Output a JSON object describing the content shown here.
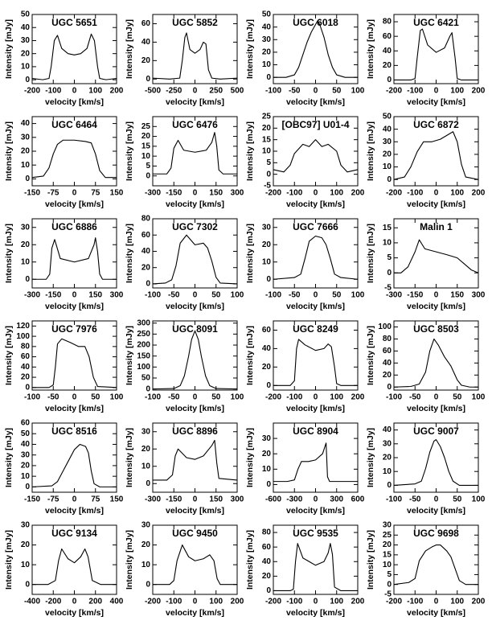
{
  "chart_data": [
    {
      "type": "line",
      "title": "UGC 5651",
      "x_label": "velocity [km/s]",
      "y_label": "Intensity [mJy]",
      "color": "#000000",
      "xlim": [
        -200,
        200
      ],
      "xticks": [
        -200,
        -100,
        0,
        100,
        200
      ],
      "ylim": [
        -3,
        50
      ],
      "yticks": [
        0,
        10,
        20,
        30,
        40,
        50
      ],
      "x": [
        -200,
        -150,
        -120,
        -110,
        -95,
        -80,
        -60,
        -30,
        0,
        30,
        60,
        80,
        95,
        110,
        120,
        150,
        200
      ],
      "values": [
        1,
        0,
        1,
        10,
        30,
        34,
        24,
        20,
        19,
        20,
        24,
        35,
        30,
        10,
        1,
        0,
        1
      ]
    },
    {
      "type": "line",
      "title": "UGC 5852",
      "x_label": "velocity [km/s]",
      "y_label": "Intensity [mJy]",
      "color": "#000000",
      "xlim": [
        -500,
        500
      ],
      "xticks": [
        -500,
        -250,
        0,
        250,
        500
      ],
      "ylim": [
        -5,
        70
      ],
      "yticks": [
        0,
        20,
        40,
        60
      ],
      "x": [
        -500,
        -300,
        -180,
        -150,
        -120,
        -100,
        -60,
        0,
        60,
        100,
        130,
        160,
        200,
        300,
        500
      ],
      "values": [
        1,
        0,
        1,
        20,
        45,
        50,
        32,
        28,
        32,
        40,
        38,
        10,
        1,
        0,
        1
      ]
    },
    {
      "type": "line",
      "title": "UGC 6018",
      "x_label": "velocity [km/s]",
      "y_label": "Intensity [mJy]",
      "color": "#000000",
      "xlim": [
        -100,
        100
      ],
      "xticks": [
        -100,
        -50,
        0,
        50,
        100
      ],
      "ylim": [
        -5,
        50
      ],
      "yticks": [
        0,
        10,
        20,
        30,
        40,
        50
      ],
      "x": [
        -100,
        -70,
        -50,
        -40,
        -30,
        -20,
        -10,
        0,
        5,
        10,
        20,
        30,
        40,
        50,
        70,
        100
      ],
      "values": [
        0,
        0,
        2,
        8,
        18,
        28,
        36,
        42,
        45,
        42,
        32,
        18,
        8,
        2,
        0,
        0
      ]
    },
    {
      "type": "line",
      "title": "UGC 6421",
      "x_label": "velocity [km/s]",
      "y_label": "Intensity [mJy]",
      "color": "#000000",
      "xlim": [
        -200,
        200
      ],
      "xticks": [
        -200,
        -100,
        0,
        100,
        200
      ],
      "ylim": [
        -5,
        90
      ],
      "yticks": [
        0,
        20,
        40,
        60,
        80
      ],
      "x": [
        -200,
        -120,
        -100,
        -90,
        -75,
        -65,
        -40,
        0,
        40,
        65,
        75,
        90,
        100,
        120,
        200
      ],
      "values": [
        0,
        0,
        2,
        30,
        68,
        70,
        48,
        38,
        44,
        60,
        65,
        30,
        2,
        0,
        0
      ]
    },
    {
      "type": "line",
      "title": "UGC 6464",
      "x_label": "velocity [km/s]",
      "y_label": "Intensity [mJy]",
      "color": "#000000",
      "xlim": [
        -150,
        150
      ],
      "xticks": [
        -150,
        -75,
        0,
        75,
        150
      ],
      "ylim": [
        -5,
        45
      ],
      "yticks": [
        0,
        10,
        20,
        30,
        40
      ],
      "x": [
        -150,
        -110,
        -90,
        -75,
        -60,
        -40,
        0,
        40,
        60,
        75,
        90,
        110,
        150
      ],
      "values": [
        1,
        2,
        8,
        18,
        25,
        28,
        28,
        27,
        26,
        18,
        6,
        1,
        1
      ]
    },
    {
      "type": "line",
      "title": "UGC 6476",
      "x_label": "velocity [km/s]",
      "y_label": "Intensity [mJy]",
      "color": "#000000",
      "xlim": [
        -300,
        300
      ],
      "xticks": [
        -300,
        -150,
        0,
        150,
        300
      ],
      "ylim": [
        -5,
        30
      ],
      "yticks": [
        0,
        5,
        10,
        15,
        20,
        25
      ],
      "x": [
        -300,
        -200,
        -170,
        -150,
        -120,
        -80,
        0,
        80,
        120,
        140,
        155,
        170,
        200,
        300
      ],
      "values": [
        1,
        1,
        4,
        14,
        18,
        13,
        12,
        13,
        17,
        22,
        15,
        3,
        1,
        1
      ]
    },
    {
      "type": "line",
      "title": "[OBC97] U01-4",
      "x_label": "velocity [km/s]",
      "y_label": "Intensity [mJy]",
      "color": "#000000",
      "xlim": [
        -200,
        200
      ],
      "xticks": [
        -200,
        -100,
        0,
        100,
        200
      ],
      "ylim": [
        -5,
        25
      ],
      "yticks": [
        -5,
        0,
        5,
        10,
        15,
        20,
        25
      ],
      "x": [
        -200,
        -150,
        -120,
        -100,
        -60,
        -30,
        0,
        30,
        60,
        100,
        120,
        150,
        200
      ],
      "values": [
        2,
        1,
        4,
        9,
        13,
        12,
        15,
        12,
        13,
        10,
        4,
        1,
        2
      ]
    },
    {
      "type": "line",
      "title": "UGC 6872",
      "x_label": "velocity [km/s]",
      "y_label": "Intensity [mJy]",
      "color": "#000000",
      "xlim": [
        -200,
        200
      ],
      "xticks": [
        -200,
        -100,
        0,
        100,
        200
      ],
      "ylim": [
        -5,
        50
      ],
      "yticks": [
        0,
        10,
        20,
        30,
        40,
        50
      ],
      "x": [
        -200,
        -150,
        -120,
        -90,
        -60,
        -20,
        20,
        60,
        80,
        100,
        120,
        140,
        200
      ],
      "values": [
        0,
        2,
        10,
        22,
        30,
        30,
        32,
        36,
        38,
        30,
        12,
        2,
        0
      ]
    },
    {
      "type": "line",
      "title": "UGC 6886",
      "x_label": "velocity [km/s]",
      "y_label": "Intensity [mJy]",
      "color": "#000000",
      "xlim": [
        -300,
        300
      ],
      "xticks": [
        -300,
        -150,
        0,
        150,
        300
      ],
      "ylim": [
        -5,
        35
      ],
      "yticks": [
        0,
        10,
        20,
        30
      ],
      "x": [
        -300,
        -200,
        -175,
        -160,
        -140,
        -100,
        0,
        100,
        140,
        150,
        165,
        180,
        200,
        300
      ],
      "values": [
        0,
        0,
        3,
        18,
        23,
        12,
        10,
        12,
        20,
        24,
        16,
        3,
        0,
        0
      ]
    },
    {
      "type": "line",
      "title": "UGC 7302",
      "x_label": "velocity [km/s]",
      "y_label": "Intensity [mJy]",
      "color": "#000000",
      "xlim": [
        -100,
        100
      ],
      "xticks": [
        -100,
        -50,
        0,
        50,
        100
      ],
      "ylim": [
        -5,
        80
      ],
      "yticks": [
        0,
        20,
        40,
        60,
        80
      ],
      "x": [
        -100,
        -70,
        -55,
        -45,
        -35,
        -20,
        0,
        20,
        30,
        40,
        50,
        60,
        100
      ],
      "values": [
        0,
        1,
        5,
        22,
        50,
        60,
        48,
        50,
        44,
        28,
        8,
        1,
        0
      ]
    },
    {
      "type": "line",
      "title": "UGC 7666",
      "x_label": "velocity [km/s]",
      "y_label": "Intensity [mJy]",
      "color": "#000000",
      "xlim": [
        -100,
        100
      ],
      "xticks": [
        -100,
        -50,
        0,
        50,
        100
      ],
      "ylim": [
        -5,
        35
      ],
      "yticks": [
        0,
        10,
        20,
        30
      ],
      "x": [
        -100,
        -50,
        -35,
        -25,
        -15,
        0,
        15,
        25,
        35,
        45,
        60,
        100
      ],
      "values": [
        0,
        1,
        3,
        12,
        22,
        25,
        24,
        20,
        12,
        3,
        1,
        0
      ]
    },
    {
      "type": "line",
      "title": "Malin 1",
      "x_label": "velocity [km/s]",
      "y_label": "Intensity [mJy]",
      "color": "#000000",
      "xlim": [
        -300,
        300
      ],
      "xticks": [
        -300,
        -150,
        0,
        150,
        300
      ],
      "ylim": [
        -5,
        18
      ],
      "yticks": [
        -5,
        0,
        5,
        10,
        15
      ],
      "x": [
        -300,
        -250,
        -200,
        -150,
        -120,
        -80,
        0,
        80,
        150,
        200,
        250,
        300
      ],
      "values": [
        0,
        0,
        2,
        7,
        11,
        8,
        7,
        6,
        5,
        3,
        1,
        0
      ]
    },
    {
      "type": "line",
      "title": "UGC 7976",
      "x_label": "velocity [km/s]",
      "y_label": "Intensity [mJy]",
      "color": "#000000",
      "xlim": [
        -100,
        100
      ],
      "xticks": [
        -100,
        -50,
        0,
        50,
        100
      ],
      "ylim": [
        -5,
        130
      ],
      "yticks": [
        0,
        20,
        40,
        60,
        80,
        100,
        120
      ],
      "x": [
        -100,
        -60,
        -50,
        -45,
        -40,
        -30,
        -10,
        10,
        25,
        35,
        45,
        55,
        100
      ],
      "values": [
        0,
        0,
        5,
        40,
        85,
        95,
        88,
        80,
        80,
        60,
        20,
        2,
        0
      ]
    },
    {
      "type": "line",
      "title": "UGC 8091",
      "x_label": "velocity [km/s]",
      "y_label": "Intensity [mJy]",
      "color": "#000000",
      "xlim": [
        -100,
        100
      ],
      "xticks": [
        -100,
        -50,
        0,
        50,
        100
      ],
      "ylim": [
        -5,
        310
      ],
      "yticks": [
        0,
        50,
        100,
        150,
        200,
        250,
        300
      ],
      "x": [
        -100,
        -50,
        -35,
        -25,
        -15,
        -8,
        0,
        8,
        15,
        25,
        35,
        50,
        100
      ],
      "values": [
        0,
        2,
        15,
        60,
        150,
        225,
        265,
        225,
        150,
        60,
        15,
        2,
        0
      ]
    },
    {
      "type": "line",
      "title": "UGC 8249",
      "x_label": "velocity [km/s]",
      "y_label": "Intensity [mJy]",
      "color": "#000000",
      "xlim": [
        -200,
        200
      ],
      "xticks": [
        -200,
        -100,
        0,
        100,
        200
      ],
      "ylim": [
        -5,
        70
      ],
      "yticks": [
        0,
        20,
        40,
        60
      ],
      "x": [
        -200,
        -120,
        -100,
        -90,
        -80,
        -50,
        0,
        40,
        60,
        75,
        90,
        100,
        120,
        200
      ],
      "values": [
        0,
        0,
        5,
        40,
        50,
        44,
        38,
        40,
        45,
        42,
        20,
        2,
        0,
        0
      ]
    },
    {
      "type": "line",
      "title": "UGC 8503",
      "x_label": "velocity [km/s]",
      "y_label": "Intensity [mJy]",
      "color": "#000000",
      "xlim": [
        -100,
        100
      ],
      "xticks": [
        -100,
        -50,
        0,
        50,
        100
      ],
      "ylim": [
        -5,
        110
      ],
      "yticks": [
        0,
        20,
        40,
        60,
        80,
        100
      ],
      "x": [
        -100,
        -60,
        -40,
        -25,
        -15,
        -5,
        5,
        20,
        35,
        50,
        60,
        80,
        100
      ],
      "values": [
        0,
        1,
        5,
        25,
        60,
        80,
        70,
        50,
        35,
        12,
        3,
        0,
        0
      ]
    },
    {
      "type": "line",
      "title": "UGC 8516",
      "x_label": "velocity [km/s]",
      "y_label": "Intensity [mJy]",
      "color": "#000000",
      "xlim": [
        -150,
        150
      ],
      "xticks": [
        -150,
        -75,
        0,
        75,
        150
      ],
      "ylim": [
        -5,
        60
      ],
      "yticks": [
        0,
        10,
        20,
        30,
        40,
        50,
        60
      ],
      "x": [
        -150,
        -80,
        -60,
        -40,
        -20,
        0,
        20,
        40,
        50,
        60,
        70,
        90,
        150
      ],
      "values": [
        0,
        1,
        5,
        15,
        25,
        35,
        40,
        38,
        32,
        15,
        3,
        0,
        0
      ]
    },
    {
      "type": "line",
      "title": "UGC 8896",
      "x_label": "velocity [km/s]",
      "y_label": "Intensity [mJy]",
      "color": "#000000",
      "xlim": [
        -300,
        300
      ],
      "xticks": [
        -300,
        -150,
        0,
        150,
        300
      ],
      "ylim": [
        -5,
        35
      ],
      "yticks": [
        0,
        10,
        20,
        30
      ],
      "x": [
        -300,
        -200,
        -160,
        -140,
        -120,
        -60,
        0,
        60,
        120,
        140,
        155,
        170,
        300
      ],
      "values": [
        2,
        2,
        5,
        16,
        20,
        15,
        14,
        16,
        22,
        25,
        12,
        3,
        2
      ]
    },
    {
      "type": "line",
      "title": "UGC 8904",
      "x_label": "velocity [km/s]",
      "y_label": "Intensity [mJy]",
      "color": "#000000",
      "xlim": [
        -600,
        600
      ],
      "xticks": [
        -600,
        -300,
        0,
        300,
        600
      ],
      "ylim": [
        -5,
        40
      ],
      "yticks": [
        0,
        10,
        20,
        30
      ],
      "x": [
        -600,
        -400,
        -300,
        -250,
        -200,
        -100,
        0,
        100,
        150,
        170,
        200,
        400,
        600
      ],
      "values": [
        2,
        2,
        3,
        10,
        15,
        15,
        16,
        20,
        27,
        5,
        2,
        2,
        2
      ]
    },
    {
      "type": "line",
      "title": "UGC 9007",
      "x_label": "velocity [km/s]",
      "y_label": "Intensity [mJy]",
      "color": "#000000",
      "xlim": [
        -100,
        100
      ],
      "xticks": [
        -100,
        -50,
        0,
        50,
        100
      ],
      "ylim": [
        -5,
        45
      ],
      "yticks": [
        0,
        10,
        20,
        30,
        40
      ],
      "x": [
        -100,
        -50,
        -35,
        -25,
        -15,
        -5,
        0,
        10,
        20,
        30,
        40,
        55,
        100
      ],
      "values": [
        0,
        1,
        3,
        12,
        24,
        32,
        33,
        28,
        20,
        10,
        3,
        0,
        0
      ]
    },
    {
      "type": "line",
      "title": "UGC 9134",
      "x_label": "velocity [km/s]",
      "y_label": "Intensity [mJy]",
      "color": "#000000",
      "xlim": [
        -400,
        400
      ],
      "xticks": [
        -400,
        -200,
        0,
        200,
        400
      ],
      "ylim": [
        -5,
        30
      ],
      "yticks": [
        0,
        10,
        20,
        30
      ],
      "x": [
        -400,
        -250,
        -180,
        -150,
        -120,
        -60,
        0,
        60,
        100,
        130,
        170,
        250,
        400
      ],
      "values": [
        0,
        0,
        2,
        12,
        18,
        13,
        11,
        14,
        18,
        14,
        2,
        0,
        0
      ]
    },
    {
      "type": "line",
      "title": "UGC 9450",
      "x_label": "velocity [km/s]",
      "y_label": "Intensity [mJy]",
      "color": "#000000",
      "xlim": [
        -200,
        200
      ],
      "xticks": [
        -200,
        -100,
        0,
        100,
        200
      ],
      "ylim": [
        -5,
        30
      ],
      "yticks": [
        0,
        10,
        20,
        30
      ],
      "x": [
        -200,
        -120,
        -100,
        -85,
        -60,
        -30,
        0,
        40,
        70,
        90,
        105,
        120,
        200
      ],
      "values": [
        0,
        0,
        2,
        12,
        20,
        14,
        12,
        13,
        15,
        12,
        3,
        0,
        0
      ]
    },
    {
      "type": "line",
      "title": "UGC 9535",
      "x_label": "velocity [km/s]",
      "y_label": "Intensity [mJy]",
      "color": "#000000",
      "xlim": [
        -200,
        200
      ],
      "xticks": [
        -200,
        -100,
        0,
        100,
        200
      ],
      "ylim": [
        -5,
        90
      ],
      "yticks": [
        0,
        20,
        40,
        60,
        80
      ],
      "x": [
        -200,
        -120,
        -105,
        -95,
        -85,
        -60,
        0,
        40,
        60,
        70,
        80,
        90,
        120,
        200
      ],
      "values": [
        0,
        0,
        2,
        40,
        65,
        45,
        35,
        40,
        52,
        65,
        50,
        5,
        0,
        0
      ]
    },
    {
      "type": "line",
      "title": "UGC 9698",
      "x_label": "velocity [km/s]",
      "y_label": "Intensity [mJy]",
      "color": "#000000",
      "xlim": [
        -200,
        200
      ],
      "xticks": [
        -200,
        -100,
        0,
        100,
        200
      ],
      "ylim": [
        -5,
        30
      ],
      "yticks": [
        -5,
        0,
        5,
        10,
        15,
        20,
        25,
        30
      ],
      "x": [
        -200,
        -130,
        -100,
        -80,
        -50,
        -20,
        0,
        20,
        50,
        70,
        90,
        110,
        140,
        200
      ],
      "values": [
        0,
        1,
        3,
        12,
        17,
        19,
        20,
        20,
        17,
        14,
        8,
        2,
        0,
        0
      ]
    }
  ]
}
